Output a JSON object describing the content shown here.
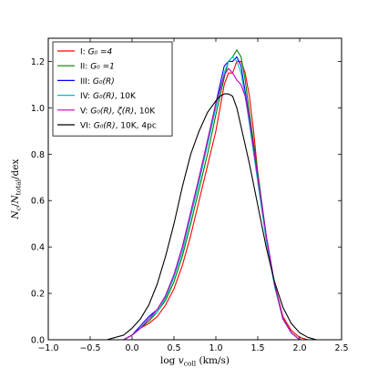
{
  "chart_data": {
    "type": "line",
    "xlabel": "log v_coll (km/s)",
    "ylabel": "N_c/N_total/dex",
    "xlim": [
      -1.0,
      2.5
    ],
    "ylim": [
      0.0,
      1.3
    ],
    "xticks": [
      -1.0,
      -0.5,
      0.0,
      0.5,
      1.0,
      1.5,
      2.0,
      2.5
    ],
    "yticks": [
      0.0,
      0.2,
      0.4,
      0.6,
      0.8,
      1.0,
      1.2
    ],
    "xtick_labels": [
      "−1.0",
      "−0.5",
      "0.0",
      "0.5",
      "1.0",
      "1.5",
      "2.0",
      "2.5"
    ],
    "ytick_labels": [
      "0.0",
      "0.2",
      "0.4",
      "0.6",
      "0.8",
      "1.0",
      "1.2"
    ],
    "grid": false,
    "legend_position": "top-left",
    "series": [
      {
        "name": "I: G0 = 4",
        "label_rn": "I: ",
        "label_math": "G₀ =4",
        "color": "#ff0000",
        "x": [
          -0.1,
          0.0,
          0.1,
          0.2,
          0.3,
          0.4,
          0.5,
          0.6,
          0.7,
          0.8,
          0.9,
          1.0,
          1.05,
          1.1,
          1.15,
          1.2,
          1.25,
          1.3,
          1.35,
          1.4,
          1.45,
          1.5,
          1.6,
          1.7,
          1.8,
          1.9,
          2.0,
          2.1
        ],
        "y": [
          0.0,
          0.02,
          0.05,
          0.07,
          0.1,
          0.15,
          0.22,
          0.32,
          0.45,
          0.6,
          0.75,
          0.9,
          1.0,
          1.1,
          1.15,
          1.15,
          1.2,
          1.2,
          1.15,
          1.05,
          0.9,
          0.72,
          0.45,
          0.24,
          0.1,
          0.04,
          0.01,
          0.0
        ]
      },
      {
        "name": "II: G0 = 1",
        "label_rn": "II: ",
        "label_math": "G₀ =1",
        "color": "#008000",
        "x": [
          -0.1,
          0.0,
          0.1,
          0.2,
          0.3,
          0.4,
          0.5,
          0.6,
          0.7,
          0.8,
          0.9,
          1.0,
          1.1,
          1.15,
          1.2,
          1.25,
          1.3,
          1.35,
          1.4,
          1.5,
          1.6,
          1.7,
          1.8,
          1.9,
          2.0
        ],
        "y": [
          0.0,
          0.02,
          0.05,
          0.08,
          0.12,
          0.17,
          0.25,
          0.36,
          0.5,
          0.65,
          0.8,
          0.97,
          1.13,
          1.2,
          1.22,
          1.25,
          1.22,
          1.12,
          0.98,
          0.72,
          0.45,
          0.24,
          0.09,
          0.03,
          0.0
        ]
      },
      {
        "name": "III: G0(R)",
        "label_rn": "III: ",
        "label_math": "G₀(R)",
        "color": "#0000ff",
        "x": [
          -0.1,
          0.0,
          0.1,
          0.2,
          0.3,
          0.4,
          0.5,
          0.6,
          0.7,
          0.8,
          0.9,
          1.0,
          1.1,
          1.15,
          1.2,
          1.25,
          1.3,
          1.35,
          1.4,
          1.5,
          1.6,
          1.7,
          1.8,
          1.9,
          2.0
        ],
        "y": [
          0.0,
          0.02,
          0.06,
          0.1,
          0.13,
          0.19,
          0.28,
          0.4,
          0.55,
          0.7,
          0.85,
          1.02,
          1.18,
          1.2,
          1.2,
          1.22,
          1.18,
          1.07,
          0.95,
          0.7,
          0.45,
          0.24,
          0.09,
          0.03,
          0.0
        ]
      },
      {
        "name": "IV: G0(R), 10K",
        "label_rn": "IV: ",
        "label_math": "G₀(R)",
        "label_suffix": ", 10K",
        "color": "#00bfbf",
        "x": [
          -0.1,
          0.0,
          0.1,
          0.2,
          0.3,
          0.4,
          0.5,
          0.6,
          0.7,
          0.8,
          0.9,
          1.0,
          1.1,
          1.15,
          1.2,
          1.25,
          1.3,
          1.35,
          1.4,
          1.5,
          1.6,
          1.7,
          1.8,
          1.9,
          2.0
        ],
        "y": [
          0.0,
          0.02,
          0.05,
          0.09,
          0.12,
          0.18,
          0.27,
          0.38,
          0.53,
          0.68,
          0.84,
          1.0,
          1.15,
          1.2,
          1.22,
          1.2,
          1.15,
          1.05,
          0.93,
          0.68,
          0.43,
          0.23,
          0.09,
          0.03,
          0.0
        ]
      },
      {
        "name": "V: G0(R), ζ(R), 10K",
        "label_rn": "V: ",
        "label_math": "G₀(R), ζ(R)",
        "label_suffix": ", 10K",
        "color": "#bf00bf",
        "x": [
          -0.1,
          0.0,
          0.1,
          0.2,
          0.3,
          0.4,
          0.5,
          0.6,
          0.7,
          0.8,
          0.9,
          1.0,
          1.1,
          1.15,
          1.2,
          1.25,
          1.3,
          1.35,
          1.4,
          1.5,
          1.6,
          1.7,
          1.8,
          1.9,
          2.0
        ],
        "y": [
          0.0,
          0.02,
          0.05,
          0.09,
          0.13,
          0.19,
          0.28,
          0.4,
          0.55,
          0.7,
          0.86,
          1.02,
          1.14,
          1.17,
          1.15,
          1.12,
          1.1,
          1.05,
          0.95,
          0.7,
          0.45,
          0.24,
          0.09,
          0.03,
          0.0
        ]
      },
      {
        "name": "VI: G0(R), 10K, 4pc",
        "label_rn": "VI: ",
        "label_math": "G₀(R)",
        "label_suffix": ", 10K, 4pc",
        "color": "#000000",
        "x": [
          -0.3,
          -0.2,
          -0.1,
          0.0,
          0.1,
          0.2,
          0.3,
          0.4,
          0.5,
          0.6,
          0.7,
          0.8,
          0.9,
          1.0,
          1.05,
          1.1,
          1.15,
          1.2,
          1.25,
          1.3,
          1.4,
          1.5,
          1.6,
          1.7,
          1.8,
          1.9,
          2.0,
          2.1,
          2.2
        ],
        "y": [
          0.0,
          0.01,
          0.02,
          0.05,
          0.09,
          0.15,
          0.24,
          0.36,
          0.5,
          0.66,
          0.8,
          0.9,
          0.98,
          1.03,
          1.05,
          1.06,
          1.06,
          1.05,
          1.0,
          0.92,
          0.76,
          0.58,
          0.4,
          0.25,
          0.14,
          0.07,
          0.03,
          0.01,
          0.0
        ]
      }
    ]
  }
}
